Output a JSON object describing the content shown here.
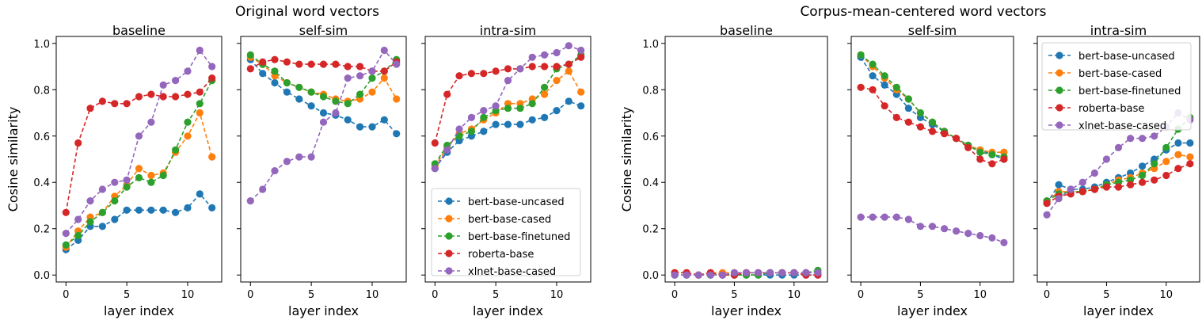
{
  "chart_data": [
    {
      "group_title": "Original word vectors",
      "ylabel": "Cosine similarity",
      "xlabel": "layer index",
      "xlim": [
        -0.8,
        12.8
      ],
      "ylim": [
        -0.03,
        1.03
      ],
      "xticks": [
        0,
        5,
        10
      ],
      "yticks": [
        0.0,
        0.2,
        0.4,
        0.6,
        0.8,
        1.0
      ],
      "ytick_labels": [
        "0.0",
        "0.2",
        "0.4",
        "0.6",
        "0.8",
        "1.0"
      ],
      "panels": [
        {
          "type": "line",
          "title": "baseline",
          "x": [
            0,
            1,
            2,
            3,
            4,
            5,
            6,
            7,
            8,
            9,
            10,
            11,
            12
          ],
          "series": [
            {
              "name": "bert-base-uncased",
              "values": [
                0.11,
                0.15,
                0.21,
                0.21,
                0.24,
                0.28,
                0.28,
                0.28,
                0.28,
                0.27,
                0.29,
                0.35,
                0.29
              ]
            },
            {
              "name": "bert-base-cased",
              "values": [
                0.12,
                0.19,
                0.25,
                0.27,
                0.34,
                0.39,
                0.46,
                0.43,
                0.44,
                0.53,
                0.6,
                0.7,
                0.51
              ]
            },
            {
              "name": "bert-base-finetuned",
              "values": [
                0.13,
                0.17,
                0.23,
                0.27,
                0.32,
                0.38,
                0.42,
                0.4,
                0.43,
                0.54,
                0.66,
                0.74,
                0.84
              ]
            },
            {
              "name": "roberta-base",
              "values": [
                0.27,
                0.57,
                0.72,
                0.75,
                0.74,
                0.74,
                0.77,
                0.78,
                0.77,
                0.77,
                0.78,
                0.79,
                0.85
              ]
            },
            {
              "name": "xlnet-base-cased",
              "values": [
                0.18,
                0.24,
                0.32,
                0.37,
                0.4,
                0.41,
                0.6,
                0.66,
                0.82,
                0.84,
                0.88,
                0.97,
                0.9
              ]
            }
          ]
        },
        {
          "type": "line",
          "title": "self-sim",
          "x": [
            0,
            1,
            2,
            3,
            4,
            5,
            6,
            7,
            8,
            9,
            10,
            11,
            12
          ],
          "series": [
            {
              "name": "bert-base-uncased",
              "values": [
                0.93,
                0.87,
                0.83,
                0.79,
                0.76,
                0.73,
                0.7,
                0.69,
                0.67,
                0.64,
                0.64,
                0.67,
                0.61
              ]
            },
            {
              "name": "bert-base-cased",
              "values": [
                0.94,
                0.91,
                0.86,
                0.83,
                0.81,
                0.79,
                0.78,
                0.76,
                0.75,
                0.76,
                0.79,
                0.85,
                0.76
              ]
            },
            {
              "name": "bert-base-finetuned",
              "values": [
                0.95,
                0.91,
                0.88,
                0.83,
                0.81,
                0.79,
                0.77,
                0.75,
                0.74,
                0.78,
                0.85,
                0.88,
                0.93
              ]
            },
            {
              "name": "roberta-base",
              "values": [
                0.89,
                0.92,
                0.93,
                0.92,
                0.91,
                0.91,
                0.91,
                0.91,
                0.9,
                0.9,
                0.88,
                0.88,
                0.92
              ]
            },
            {
              "name": "xlnet-base-cased",
              "values": [
                0.32,
                0.37,
                0.45,
                0.49,
                0.51,
                0.51,
                0.66,
                0.7,
                0.85,
                0.86,
                0.88,
                0.97,
                0.91
              ]
            }
          ]
        },
        {
          "type": "line",
          "title": "intra-sim",
          "x": [
            0,
            1,
            2,
            3,
            4,
            5,
            6,
            7,
            8,
            9,
            10,
            11,
            12
          ],
          "legend": "lower-right",
          "series": [
            {
              "name": "bert-base-uncased",
              "values": [
                0.46,
                0.53,
                0.58,
                0.6,
                0.62,
                0.65,
                0.65,
                0.65,
                0.67,
                0.68,
                0.71,
                0.75,
                0.73
              ]
            },
            {
              "name": "bert-base-cased",
              "values": [
                0.47,
                0.55,
                0.61,
                0.63,
                0.67,
                0.7,
                0.74,
                0.74,
                0.76,
                0.78,
                0.84,
                0.88,
                0.79
              ]
            },
            {
              "name": "bert-base-finetuned",
              "values": [
                0.48,
                0.56,
                0.6,
                0.62,
                0.68,
                0.71,
                0.72,
                0.72,
                0.74,
                0.81,
                0.89,
                0.91,
                0.95
              ]
            },
            {
              "name": "roberta-base",
              "values": [
                0.57,
                0.78,
                0.86,
                0.87,
                0.87,
                0.88,
                0.89,
                0.89,
                0.9,
                0.9,
                0.9,
                0.91,
                0.94
              ]
            },
            {
              "name": "xlnet-base-cased",
              "values": [
                0.46,
                0.54,
                0.63,
                0.68,
                0.71,
                0.73,
                0.84,
                0.89,
                0.94,
                0.95,
                0.96,
                0.99,
                0.97
              ]
            }
          ]
        }
      ]
    },
    {
      "group_title": "Corpus-mean-centered word vectors",
      "ylabel": "Cosine similarity",
      "xlabel": "layer index",
      "xlim": [
        -0.8,
        12.8
      ],
      "ylim": [
        -0.03,
        1.03
      ],
      "xticks": [
        0,
        5,
        10
      ],
      "yticks": [
        0.0,
        0.2,
        0.4,
        0.6,
        0.8,
        1.0
      ],
      "ytick_labels": [
        "0.0",
        "0.2",
        "0.4",
        "0.6",
        "0.8",
        "1.0"
      ],
      "panels": [
        {
          "type": "line",
          "title": "baseline",
          "x": [
            0,
            1,
            2,
            3,
            4,
            5,
            6,
            7,
            8,
            9,
            10,
            11,
            12
          ],
          "series": [
            {
              "name": "bert-base-uncased",
              "values": [
                0.0,
                0.0,
                0.0,
                0.0,
                0.0,
                0.0,
                0.0,
                0.0,
                0.0,
                0.0,
                0.0,
                0.0,
                0.0
              ]
            },
            {
              "name": "bert-base-cased",
              "values": [
                0.01,
                0.01,
                0.0,
                0.01,
                0.01,
                0.01,
                0.01,
                0.01,
                0.01,
                0.01,
                0.01,
                0.01,
                0.01
              ]
            },
            {
              "name": "bert-base-finetuned",
              "values": [
                0.0,
                0.0,
                0.0,
                0.0,
                0.0,
                0.0,
                0.0,
                0.0,
                0.01,
                0.01,
                0.01,
                0.01,
                0.02
              ]
            },
            {
              "name": "roberta-base",
              "values": [
                0.01,
                0.01,
                0.0,
                0.01,
                0.0,
                0.0,
                0.01,
                0.01,
                0.01,
                0.01,
                0.01,
                0.0,
                0.0
              ]
            },
            {
              "name": "xlnet-base-cased",
              "values": [
                0.0,
                0.0,
                0.0,
                0.0,
                0.0,
                0.01,
                0.01,
                0.01,
                0.01,
                0.01,
                0.01,
                0.01,
                0.01
              ]
            }
          ]
        },
        {
          "type": "line",
          "title": "self-sim",
          "x": [
            0,
            1,
            2,
            3,
            4,
            5,
            6,
            7,
            8,
            9,
            10,
            11,
            12
          ],
          "series": [
            {
              "name": "bert-base-uncased",
              "values": [
                0.94,
                0.86,
                0.82,
                0.78,
                0.72,
                0.68,
                0.65,
                0.62,
                0.59,
                0.56,
                0.54,
                0.52,
                0.5
              ]
            },
            {
              "name": "bert-base-cased",
              "values": [
                0.95,
                0.9,
                0.85,
                0.8,
                0.76,
                0.7,
                0.66,
                0.62,
                0.59,
                0.56,
                0.54,
                0.53,
                0.53
              ]
            },
            {
              "name": "bert-base-finetuned",
              "values": [
                0.95,
                0.91,
                0.86,
                0.81,
                0.76,
                0.7,
                0.66,
                0.62,
                0.59,
                0.56,
                0.53,
                0.52,
                0.51
              ]
            },
            {
              "name": "roberta-base",
              "values": [
                0.81,
                0.8,
                0.73,
                0.68,
                0.66,
                0.64,
                0.62,
                0.61,
                0.59,
                0.55,
                0.5,
                0.48,
                0.5
              ]
            },
            {
              "name": "xlnet-base-cased",
              "values": [
                0.25,
                0.25,
                0.25,
                0.25,
                0.24,
                0.21,
                0.21,
                0.2,
                0.19,
                0.18,
                0.17,
                0.16,
                0.14
              ]
            }
          ]
        },
        {
          "type": "line",
          "title": "intra-sim",
          "x": [
            0,
            1,
            2,
            3,
            4,
            5,
            6,
            7,
            8,
            9,
            10,
            11,
            12
          ],
          "legend": "upper-left",
          "series": [
            {
              "name": "bert-base-uncased",
              "values": [
                0.31,
                0.39,
                0.37,
                0.37,
                0.38,
                0.4,
                0.42,
                0.44,
                0.47,
                0.5,
                0.54,
                0.57,
                0.57
              ]
            },
            {
              "name": "bert-base-cased",
              "values": [
                0.32,
                0.36,
                0.36,
                0.36,
                0.37,
                0.39,
                0.41,
                0.42,
                0.44,
                0.46,
                0.49,
                0.52,
                0.51
              ]
            },
            {
              "name": "bert-base-finetuned",
              "values": [
                0.32,
                0.35,
                0.36,
                0.36,
                0.37,
                0.39,
                0.4,
                0.41,
                0.43,
                0.48,
                0.55,
                0.63,
                0.68
              ]
            },
            {
              "name": "roberta-base",
              "values": [
                0.31,
                0.34,
                0.35,
                0.36,
                0.37,
                0.38,
                0.38,
                0.39,
                0.4,
                0.41,
                0.43,
                0.46,
                0.48
              ]
            },
            {
              "name": "xlnet-base-cased",
              "values": [
                0.26,
                0.33,
                0.37,
                0.4,
                0.44,
                0.5,
                0.55,
                0.59,
                0.59,
                0.6,
                0.64,
                0.7,
                0.67
              ]
            }
          ]
        }
      ]
    }
  ],
  "colors": {
    "bert-base-uncased": "#1f77b4",
    "bert-base-cased": "#ff7f0e",
    "bert-base-finetuned": "#2ca02c",
    "roberta-base": "#d62728",
    "xlnet-base-cased": "#9467bd"
  }
}
